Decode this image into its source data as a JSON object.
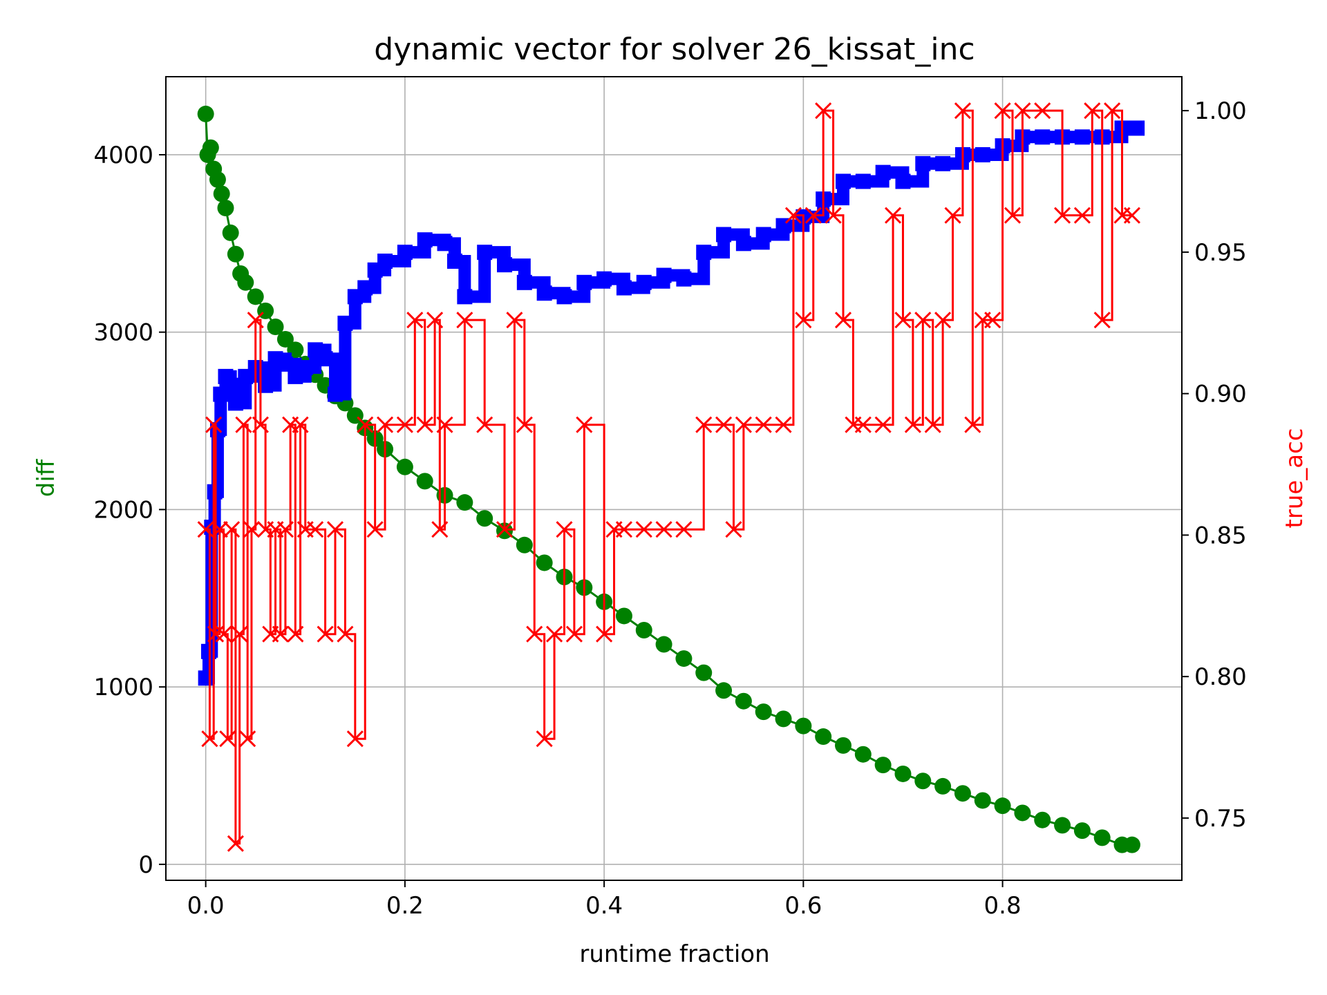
{
  "chart_data": {
    "type": "line",
    "title": "dynamic vector for solver 26_kissat_inc",
    "xlabel": "runtime fraction",
    "ylabel": "diff",
    "ylabel_right": "true_acc",
    "xlim": [
      -0.04,
      0.98
    ],
    "ylim": [
      -90,
      4440
    ],
    "ylim_right": [
      0.728,
      1.012
    ],
    "x_ticks": [
      0.0,
      0.2,
      0.4,
      0.6,
      0.8
    ],
    "x_tick_labels": [
      "0.0",
      "0.2",
      "0.4",
      "0.6",
      "0.8"
    ],
    "y_ticks": [
      0,
      1000,
      2000,
      3000,
      4000
    ],
    "y_tick_labels": [
      "0",
      "1000",
      "2000",
      "3000",
      "4000"
    ],
    "y_right_ticks": [
      0.75,
      0.8,
      0.85,
      0.9,
      0.95,
      1.0
    ],
    "y_right_tick_labels": [
      "0.75",
      "0.80",
      "0.85",
      "0.90",
      "0.95",
      "1.00"
    ],
    "grid": true,
    "colors": {
      "diff": "#008000",
      "blue_series": "#0000ff",
      "true_acc": "#ff0000"
    },
    "series": [
      {
        "axis": "left",
        "marker": "circle",
        "color": "#008000",
        "x": [
          0.0,
          0.002,
          0.005,
          0.008,
          0.012,
          0.016,
          0.02,
          0.025,
          0.03,
          0.035,
          0.04,
          0.05,
          0.06,
          0.07,
          0.08,
          0.09,
          0.1,
          0.11,
          0.12,
          0.13,
          0.14,
          0.15,
          0.16,
          0.17,
          0.18,
          0.2,
          0.22,
          0.24,
          0.26,
          0.28,
          0.3,
          0.32,
          0.34,
          0.36,
          0.38,
          0.4,
          0.42,
          0.44,
          0.46,
          0.48,
          0.5,
          0.52,
          0.54,
          0.56,
          0.58,
          0.6,
          0.62,
          0.64,
          0.66,
          0.68,
          0.7,
          0.72,
          0.74,
          0.76,
          0.78,
          0.8,
          0.82,
          0.84,
          0.86,
          0.88,
          0.9,
          0.92,
          0.93
        ],
        "y": [
          4230,
          4000,
          4040,
          3920,
          3860,
          3780,
          3700,
          3560,
          3440,
          3330,
          3280,
          3200,
          3120,
          3030,
          2960,
          2900,
          2820,
          2760,
          2700,
          2640,
          2600,
          2530,
          2460,
          2400,
          2340,
          2240,
          2160,
          2080,
          2040,
          1950,
          1880,
          1800,
          1700,
          1620,
          1560,
          1480,
          1400,
          1320,
          1240,
          1160,
          1080,
          980,
          920,
          860,
          820,
          780,
          720,
          670,
          620,
          560,
          510,
          470,
          440,
          400,
          360,
          330,
          290,
          250,
          220,
          190,
          150,
          110,
          110
        ]
      },
      {
        "axis": "left",
        "marker": "square",
        "color": "#0000ff",
        "x": [
          0.0,
          0.003,
          0.006,
          0.009,
          0.012,
          0.015,
          0.02,
          0.025,
          0.03,
          0.04,
          0.05,
          0.06,
          0.07,
          0.08,
          0.09,
          0.1,
          0.11,
          0.12,
          0.13,
          0.14,
          0.15,
          0.16,
          0.17,
          0.18,
          0.2,
          0.22,
          0.24,
          0.25,
          0.26,
          0.28,
          0.3,
          0.32,
          0.34,
          0.36,
          0.38,
          0.4,
          0.42,
          0.44,
          0.46,
          0.48,
          0.5,
          0.52,
          0.54,
          0.56,
          0.58,
          0.6,
          0.62,
          0.64,
          0.66,
          0.68,
          0.7,
          0.72,
          0.74,
          0.76,
          0.78,
          0.8,
          0.82,
          0.84,
          0.86,
          0.88,
          0.9,
          0.92,
          0.935
        ],
        "y": [
          1050,
          1200,
          1900,
          2100,
          2450,
          2650,
          2750,
          2700,
          2600,
          2750,
          2800,
          2700,
          2850,
          2820,
          2750,
          2800,
          2900,
          2850,
          2650,
          3050,
          3200,
          3250,
          3350,
          3400,
          3450,
          3520,
          3500,
          3400,
          3200,
          3450,
          3380,
          3280,
          3220,
          3200,
          3280,
          3300,
          3250,
          3280,
          3320,
          3300,
          3450,
          3550,
          3500,
          3550,
          3600,
          3650,
          3750,
          3850,
          3850,
          3900,
          3850,
          3950,
          3950,
          4000,
          4000,
          4050,
          4100,
          4100,
          4100,
          4100,
          4100,
          4150,
          4150
        ]
      },
      {
        "axis": "right",
        "marker": "x",
        "color": "#ff0000",
        "x": [
          0.0,
          0.004,
          0.008,
          0.01,
          0.014,
          0.018,
          0.022,
          0.026,
          0.03,
          0.034,
          0.038,
          0.042,
          0.046,
          0.05,
          0.055,
          0.06,
          0.065,
          0.07,
          0.075,
          0.08,
          0.085,
          0.09,
          0.095,
          0.1,
          0.11,
          0.12,
          0.13,
          0.14,
          0.15,
          0.16,
          0.17,
          0.18,
          0.2,
          0.21,
          0.22,
          0.23,
          0.235,
          0.24,
          0.26,
          0.28,
          0.3,
          0.31,
          0.32,
          0.33,
          0.34,
          0.35,
          0.36,
          0.37,
          0.38,
          0.4,
          0.41,
          0.42,
          0.44,
          0.46,
          0.48,
          0.5,
          0.52,
          0.53,
          0.54,
          0.56,
          0.58,
          0.59,
          0.6,
          0.61,
          0.62,
          0.63,
          0.64,
          0.65,
          0.66,
          0.68,
          0.69,
          0.7,
          0.71,
          0.72,
          0.73,
          0.74,
          0.75,
          0.76,
          0.77,
          0.78,
          0.79,
          0.8,
          0.81,
          0.82,
          0.84,
          0.86,
          0.88,
          0.89,
          0.9,
          0.91,
          0.92,
          0.93
        ],
        "y": [
          0.852,
          0.778,
          0.889,
          0.815,
          0.852,
          0.815,
          0.778,
          0.852,
          0.741,
          0.815,
          0.889,
          0.778,
          0.852,
          0.926,
          0.889,
          0.852,
          0.815,
          0.852,
          0.815,
          0.852,
          0.889,
          0.815,
          0.889,
          0.852,
          0.852,
          0.815,
          0.852,
          0.815,
          0.778,
          0.889,
          0.852,
          0.889,
          0.889,
          0.926,
          0.889,
          0.926,
          0.852,
          0.889,
          0.926,
          0.889,
          0.852,
          0.926,
          0.889,
          0.815,
          0.778,
          0.815,
          0.852,
          0.815,
          0.889,
          0.815,
          0.852,
          0.852,
          0.852,
          0.852,
          0.852,
          0.889,
          0.889,
          0.852,
          0.889,
          0.889,
          0.889,
          0.963,
          0.926,
          0.963,
          1.0,
          0.963,
          0.926,
          0.889,
          0.889,
          0.889,
          0.963,
          0.926,
          0.889,
          0.926,
          0.889,
          0.926,
          0.963,
          1.0,
          0.889,
          0.926,
          0.926,
          1.0,
          0.963,
          1.0,
          1.0,
          0.963,
          0.963,
          1.0,
          0.926,
          1.0,
          0.963,
          0.963
        ]
      }
    ]
  }
}
